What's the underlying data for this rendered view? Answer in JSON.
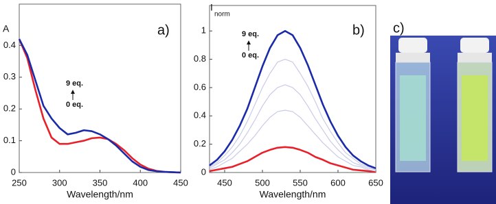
{
  "chart_data": [
    {
      "type": "line",
      "ylabel": "A",
      "xlabel": "Wavelength/nm",
      "annotation": "a)",
      "x": [
        250,
        260,
        270,
        280,
        290,
        300,
        310,
        320,
        330,
        340,
        350,
        360,
        370,
        380,
        390,
        400,
        410,
        420,
        430,
        440,
        450
      ],
      "xlim": [
        250,
        450
      ],
      "xticks": [
        250,
        300,
        350,
        400,
        450
      ],
      "ylim": [
        0,
        0.53
      ],
      "yticks": [
        0,
        0.1,
        0.2,
        0.3,
        0.4
      ],
      "series": [
        {
          "name": "0 eq.",
          "color": "#e8202a",
          "values": [
            0.42,
            0.36,
            0.26,
            0.17,
            0.11,
            0.09,
            0.09,
            0.095,
            0.1,
            0.108,
            0.11,
            0.105,
            0.09,
            0.07,
            0.045,
            0.025,
            0.012,
            0.005,
            0.002,
            0.001,
            0
          ]
        },
        {
          "name": "9 eq.",
          "color": "#1a2aa8",
          "values": [
            0.42,
            0.37,
            0.29,
            0.21,
            0.17,
            0.14,
            0.12,
            0.125,
            0.133,
            0.13,
            0.12,
            0.105,
            0.085,
            0.06,
            0.035,
            0.018,
            0.008,
            0.004,
            0.002,
            0.001,
            0
          ]
        }
      ]
    },
    {
      "type": "line",
      "ylabel": "I",
      "ylabel_sub": "norm",
      "xlabel": "Wavelength/nm",
      "annotation": "b)",
      "x": [
        430,
        440,
        450,
        460,
        470,
        480,
        490,
        500,
        510,
        520,
        530,
        540,
        550,
        560,
        570,
        580,
        590,
        600,
        610,
        620,
        630,
        640,
        650
      ],
      "xlim": [
        430,
        650
      ],
      "xticks": [
        450,
        500,
        550,
        600,
        650
      ],
      "ylim": [
        0,
        1.18
      ],
      "yticks": [
        0,
        0.2,
        0.4,
        0.6,
        0.8,
        1
      ],
      "series": [
        {
          "name": "0 eq.",
          "color": "#e8202a",
          "values": [
            0.01,
            0.02,
            0.03,
            0.04,
            0.06,
            0.08,
            0.11,
            0.14,
            0.16,
            0.175,
            0.18,
            0.175,
            0.16,
            0.14,
            0.11,
            0.09,
            0.065,
            0.05,
            0.035,
            0.02,
            0.015,
            0.01,
            0.005
          ]
        },
        {
          "color": "#c8cbe8",
          "values": [
            0.02,
            0.04,
            0.07,
            0.1,
            0.15,
            0.2,
            0.26,
            0.33,
            0.39,
            0.43,
            0.44,
            0.43,
            0.39,
            0.33,
            0.27,
            0.21,
            0.16,
            0.11,
            0.08,
            0.05,
            0.04,
            0.02,
            0.01
          ]
        },
        {
          "color": "#c8cbe8",
          "values": [
            0.03,
            0.06,
            0.09,
            0.14,
            0.2,
            0.28,
            0.37,
            0.47,
            0.55,
            0.6,
            0.62,
            0.6,
            0.55,
            0.47,
            0.38,
            0.3,
            0.22,
            0.16,
            0.11,
            0.07,
            0.05,
            0.03,
            0.02
          ]
        },
        {
          "color": "#c8cbe8",
          "values": [
            0.04,
            0.07,
            0.12,
            0.18,
            0.26,
            0.36,
            0.48,
            0.6,
            0.7,
            0.78,
            0.8,
            0.78,
            0.7,
            0.61,
            0.5,
            0.38,
            0.29,
            0.21,
            0.14,
            0.1,
            0.06,
            0.04,
            0.02
          ]
        },
        {
          "name": "9 eq.",
          "color": "#1a2aa8",
          "values": [
            0.05,
            0.09,
            0.15,
            0.23,
            0.33,
            0.45,
            0.6,
            0.75,
            0.88,
            0.97,
            1.0,
            0.97,
            0.88,
            0.76,
            0.62,
            0.48,
            0.36,
            0.26,
            0.18,
            0.12,
            0.08,
            0.05,
            0.03
          ]
        }
      ]
    }
  ],
  "photo": {
    "label": "c)"
  }
}
